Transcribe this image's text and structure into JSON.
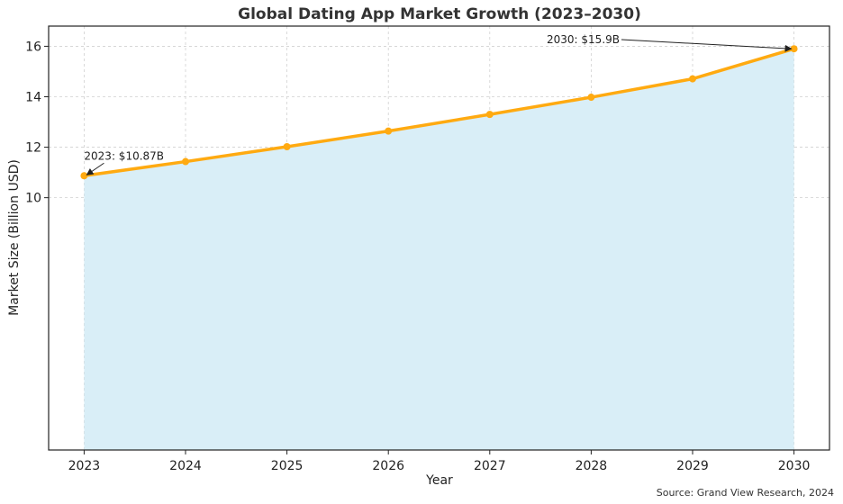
{
  "chart_data": {
    "type": "area",
    "title": "Global Dating App Market Growth (2023–2030)",
    "xlabel": "Year",
    "ylabel": "Market Size (Billion USD)",
    "x": [
      2023,
      2024,
      2025,
      2026,
      2027,
      2028,
      2029,
      2030
    ],
    "y": [
      10.87,
      11.43,
      12.02,
      12.64,
      13.3,
      13.98,
      14.71,
      15.9
    ],
    "ylim": [
      0,
      16.8
    ],
    "yticks": [
      10,
      12,
      14,
      16
    ],
    "grid": true,
    "fill_baseline": 0,
    "colors": {
      "line": "#FFAA11",
      "fill": "#D9EEF7",
      "arrow": "#222222"
    },
    "annotations": [
      {
        "text": "2023: $10.87B",
        "x": 2023,
        "y": 10.87
      },
      {
        "text": "2030: $15.9B",
        "x": 2030,
        "y": 15.9
      }
    ]
  },
  "source_note": "Source: Grand View Research, 2024"
}
